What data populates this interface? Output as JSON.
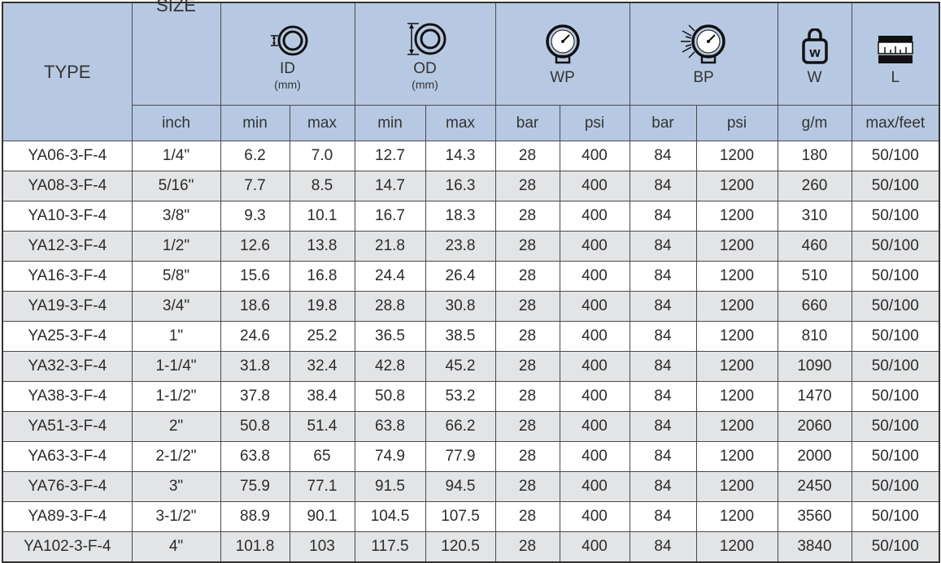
{
  "header": {
    "type": "TYPE",
    "size": "SIZE",
    "id": "ID",
    "id_unit": "(mm)",
    "od": "OD",
    "od_unit": "(mm)",
    "wp": "WP",
    "bp": "BP",
    "w": "W",
    "l": "L"
  },
  "subheader": {
    "inch": "inch",
    "id_min": "min",
    "id_max": "max",
    "od_min": "min",
    "od_max": "max",
    "wp_bar": "bar",
    "wp_psi": "psi",
    "bp_bar": "bar",
    "bp_psi": "psi",
    "w_unit": "g/m",
    "l_unit": "max/feet"
  },
  "icons": {
    "id": "inner-diameter-icon",
    "od": "outer-diameter-icon",
    "wp": "pressure-gauge-icon",
    "bp": "burst-gauge-icon",
    "w": "weight-icon",
    "l": "length-icon"
  },
  "colors": {
    "header_bg": "#b7c9e2",
    "alt_row": "#e3e4e6",
    "border": "#4a4a4a"
  },
  "rows": [
    [
      "YA06-3-F-4",
      "1/4\"",
      "6.2",
      "7.0",
      "12.7",
      "14.3",
      "28",
      "400",
      "84",
      "1200",
      "180",
      "50/100"
    ],
    [
      "YA08-3-F-4",
      "5/16\"",
      "7.7",
      "8.5",
      "14.7",
      "16.3",
      "28",
      "400",
      "84",
      "1200",
      "260",
      "50/100"
    ],
    [
      "YA10-3-F-4",
      "3/8\"",
      "9.3",
      "10.1",
      "16.7",
      "18.3",
      "28",
      "400",
      "84",
      "1200",
      "310",
      "50/100"
    ],
    [
      "YA12-3-F-4",
      "1/2\"",
      "12.6",
      "13.8",
      "21.8",
      "23.8",
      "28",
      "400",
      "84",
      "1200",
      "460",
      "50/100"
    ],
    [
      "YA16-3-F-4",
      "5/8\"",
      "15.6",
      "16.8",
      "24.4",
      "26.4",
      "28",
      "400",
      "84",
      "1200",
      "510",
      "50/100"
    ],
    [
      "YA19-3-F-4",
      "3/4\"",
      "18.6",
      "19.8",
      "28.8",
      "30.8",
      "28",
      "400",
      "84",
      "1200",
      "660",
      "50/100"
    ],
    [
      "YA25-3-F-4",
      "1\"",
      "24.6",
      "25.2",
      "36.5",
      "38.5",
      "28",
      "400",
      "84",
      "1200",
      "810",
      "50/100"
    ],
    [
      "YA32-3-F-4",
      "1-1/4\"",
      "31.8",
      "32.4",
      "42.8",
      "45.2",
      "28",
      "400",
      "84",
      "1200",
      "1090",
      "50/100"
    ],
    [
      "YA38-3-F-4",
      "1-1/2\"",
      "37.8",
      "38.4",
      "50.8",
      "53.2",
      "28",
      "400",
      "84",
      "1200",
      "1470",
      "50/100"
    ],
    [
      "YA51-3-F-4",
      "2\"",
      "50.8",
      "51.4",
      "63.8",
      "66.2",
      "28",
      "400",
      "84",
      "1200",
      "2060",
      "50/100"
    ],
    [
      "YA63-3-F-4",
      "2-1/2\"",
      "63.8",
      "65",
      "74.9",
      "77.9",
      "28",
      "400",
      "84",
      "1200",
      "2000",
      "50/100"
    ],
    [
      "YA76-3-F-4",
      "3\"",
      "75.9",
      "77.1",
      "91.5",
      "94.5",
      "28",
      "400",
      "84",
      "1200",
      "2450",
      "50/100"
    ],
    [
      "YA89-3-F-4",
      "3-1/2\"",
      "88.9",
      "90.1",
      "104.5",
      "107.5",
      "28",
      "400",
      "84",
      "1200",
      "3560",
      "50/100"
    ],
    [
      "YA102-3-F-4",
      "4\"",
      "101.8",
      "103",
      "117.5",
      "120.5",
      "28",
      "400",
      "84",
      "1200",
      "3840",
      "50/100"
    ]
  ]
}
